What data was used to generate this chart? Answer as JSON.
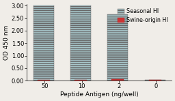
{
  "categories": [
    "50",
    "10",
    "2",
    "0"
  ],
  "seasonal_hi": [
    3.0,
    3.0,
    2.65,
    0.04
  ],
  "swine_hi": [
    0.04,
    0.04,
    0.06,
    0.04
  ],
  "seasonal_color": "#a8c8cc",
  "seasonal_edge": "#666666",
  "swine_color": "#cc3333",
  "swine_edge": "#aa2222",
  "bar_width": 0.55,
  "bar_gap": 0.0,
  "xlabel": "Peptide Antigen (ng/well)",
  "ylabel": "OD 450 nm",
  "ylim_max": 3.05,
  "yticks": [
    0.0,
    0.5,
    1.0,
    1.5,
    2.0,
    2.5,
    3.0
  ],
  "legend_seasonal": "Seasonal HI",
  "legend_swine": "Swine-origin HI",
  "background_color": "#f0ede8",
  "axis_fontsize": 6.5,
  "tick_fontsize": 6,
  "legend_fontsize": 5.8
}
